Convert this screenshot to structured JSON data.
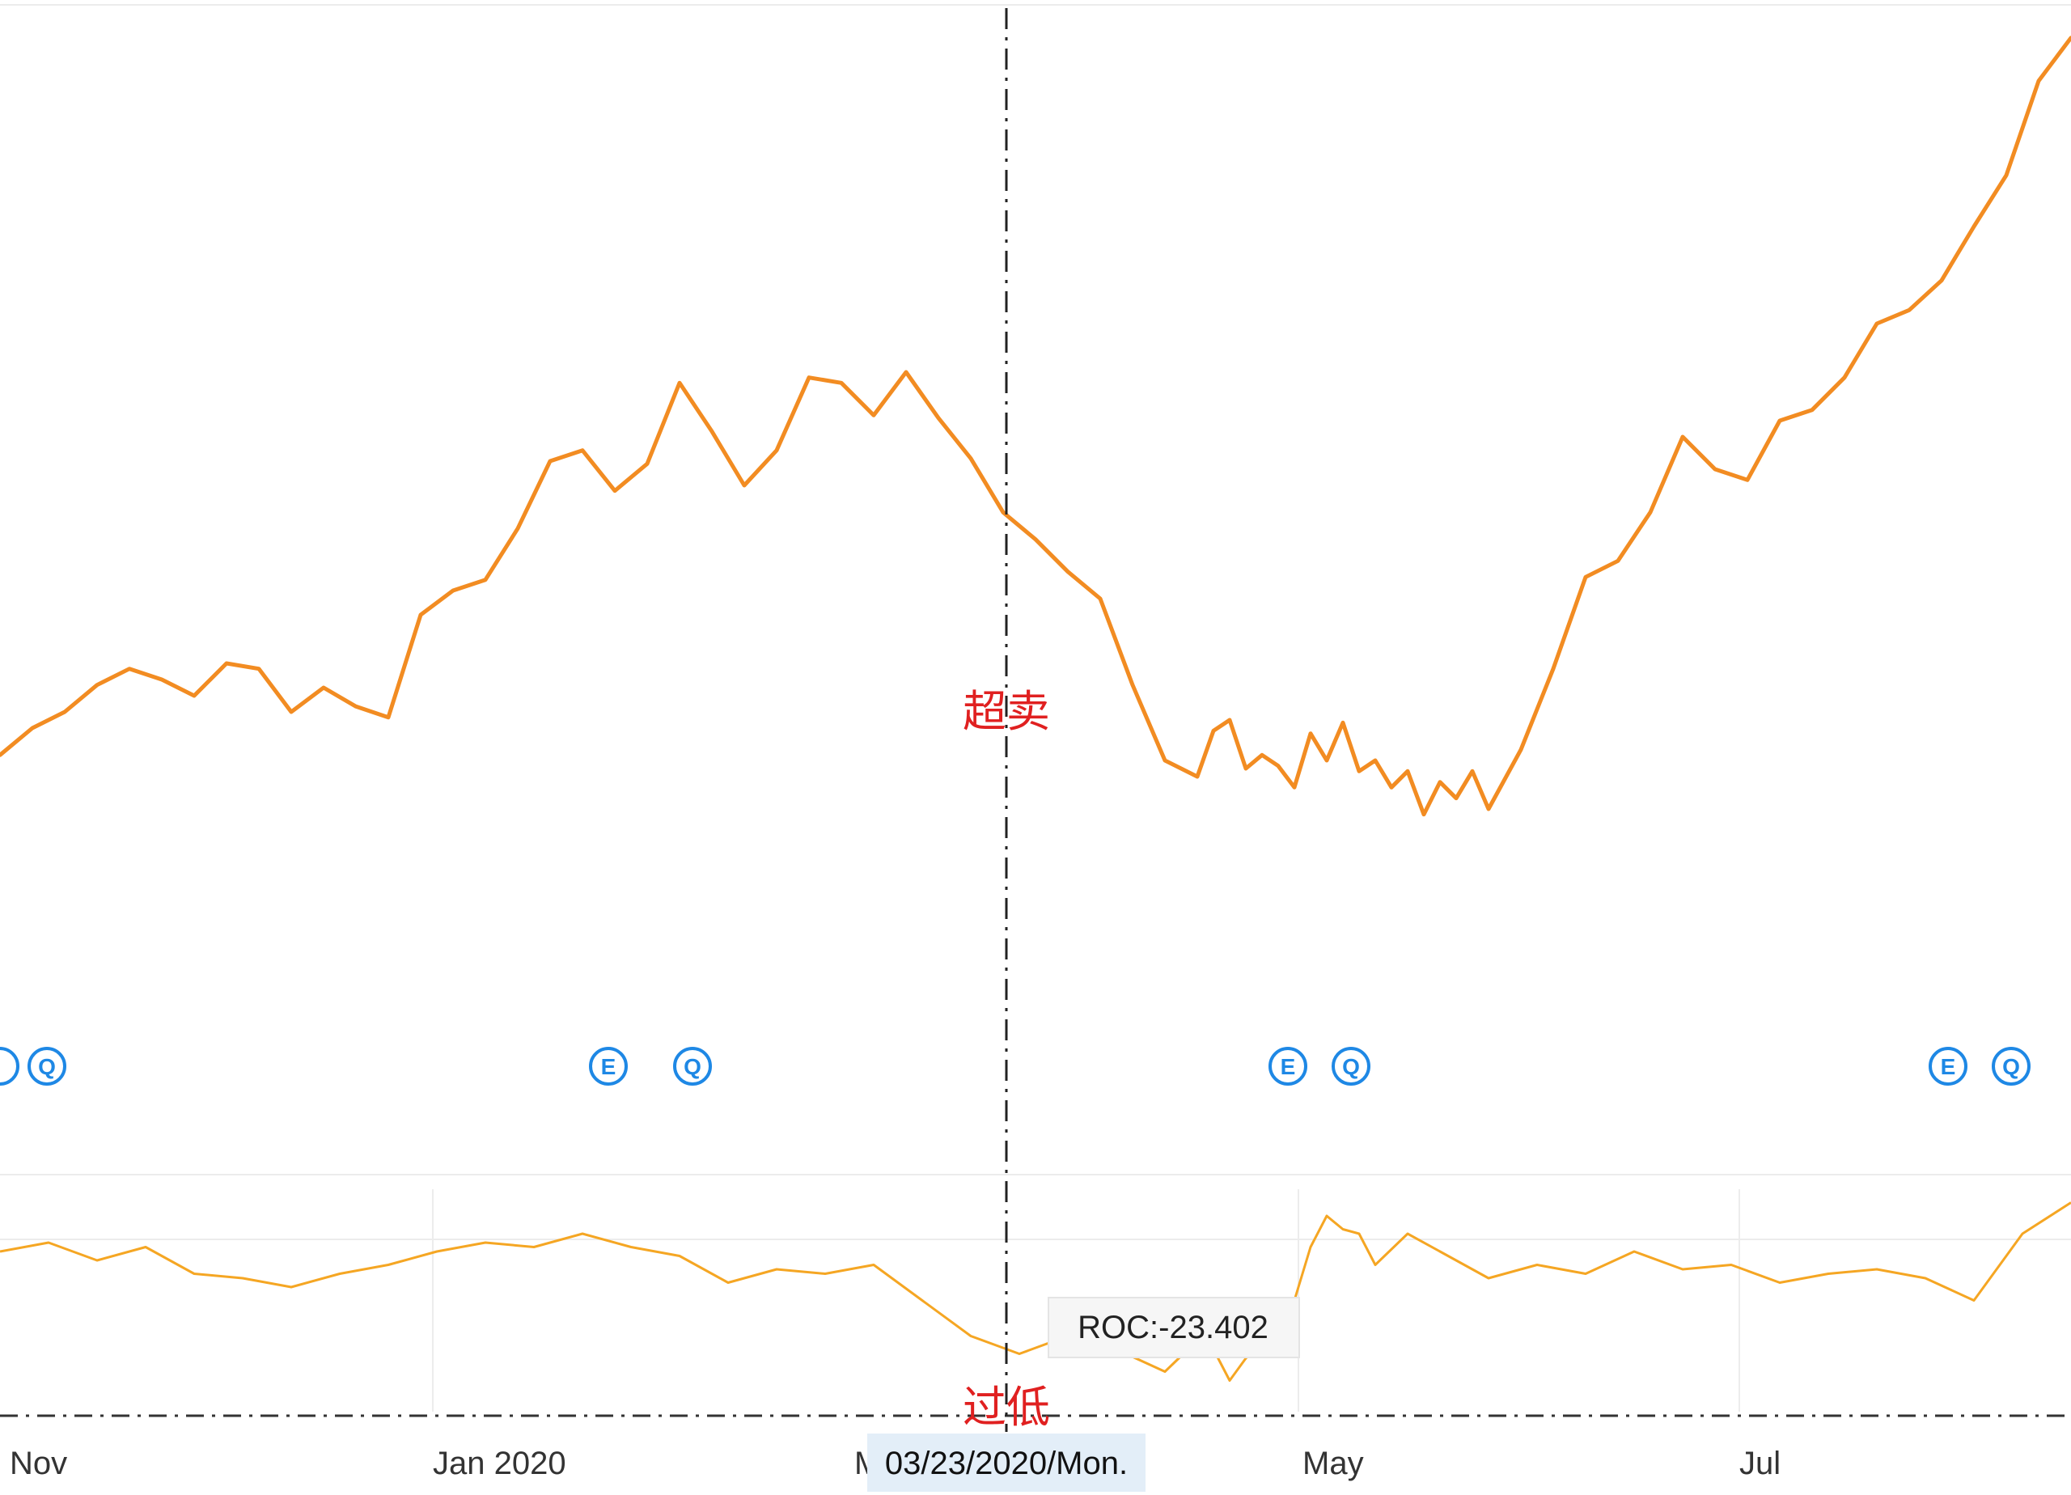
{
  "chart_data": [
    {
      "type": "line",
      "panel": "price",
      "x": [
        0,
        4,
        8,
        12,
        16,
        20,
        24,
        28,
        32,
        36,
        40,
        44,
        48,
        52,
        56,
        60,
        64,
        68,
        72,
        76,
        80,
        84,
        88,
        92,
        96,
        100,
        104,
        108,
        112,
        116,
        120,
        124,
        128,
        132,
        136,
        140,
        144,
        148,
        150,
        152,
        154,
        156,
        158,
        160,
        162,
        164,
        166,
        168,
        170,
        172,
        174,
        176,
        178,
        180,
        182,
        184,
        188,
        192,
        196,
        200,
        204,
        208,
        212,
        216,
        220,
        224,
        228,
        232,
        236,
        240,
        244,
        248,
        252,
        256
      ],
      "values": [
        180,
        190,
        196,
        206,
        212,
        208,
        202,
        214,
        212,
        196,
        205,
        198,
        194,
        232,
        241,
        245,
        264,
        289,
        293,
        278,
        288,
        318,
        300,
        280,
        293,
        320,
        318,
        306,
        322,
        305,
        290,
        270,
        260,
        248,
        238,
        206,
        178,
        172,
        189,
        193,
        175,
        180,
        176,
        168,
        188,
        178,
        192,
        174,
        178,
        168,
        174,
        158,
        170,
        164,
        174,
        160,
        182,
        212,
        246,
        252,
        270,
        298,
        286,
        282,
        304,
        308,
        320,
        340,
        345,
        356,
        376,
        395,
        430,
        446
      ],
      "ylim": [
        100,
        460
      ]
    },
    {
      "type": "line",
      "panel": "roc",
      "x": [
        0,
        6,
        12,
        18,
        24,
        30,
        36,
        42,
        48,
        54,
        60,
        66,
        72,
        78,
        84,
        90,
        96,
        102,
        108,
        114,
        120,
        126,
        132,
        138,
        144,
        148,
        150,
        152,
        154,
        156,
        158,
        160,
        162,
        164,
        166,
        168,
        170,
        174,
        178,
        184,
        190,
        196,
        202,
        208,
        214,
        220,
        226,
        232,
        238,
        244,
        250,
        256
      ],
      "values": [
        1,
        3,
        -1,
        2,
        -4,
        -5,
        -7,
        -4,
        -2,
        1,
        3,
        2,
        5,
        2,
        0,
        -6,
        -3,
        -4,
        -2,
        -10,
        -18,
        -22,
        -18,
        -21,
        -26,
        -19,
        -21,
        -28,
        -23,
        -20,
        -17,
        -10,
        2,
        9,
        6,
        5,
        -2,
        5,
        1,
        -5,
        -2,
        -4,
        1,
        -3,
        -2,
        -6,
        -4,
        -3,
        -5,
        -10,
        5,
        12
      ],
      "ylim": [
        -35,
        15
      ]
    }
  ],
  "axis": {
    "x_ticks": [
      "Nov",
      "Jan 2020",
      "M",
      "May",
      "Jul"
    ]
  },
  "annotations": {
    "oversold": "超卖",
    "too_low": "过低"
  },
  "tooltip": {
    "text": "ROC:-23.402"
  },
  "crosshair": {
    "date_label": "03/23/2020/Mon."
  },
  "markers": [
    "E",
    "Q"
  ],
  "colors": {
    "price_line": "#f28c22",
    "roc_line": "#f5a623",
    "annotation": "#e02020",
    "marker": "#1e88e5"
  }
}
